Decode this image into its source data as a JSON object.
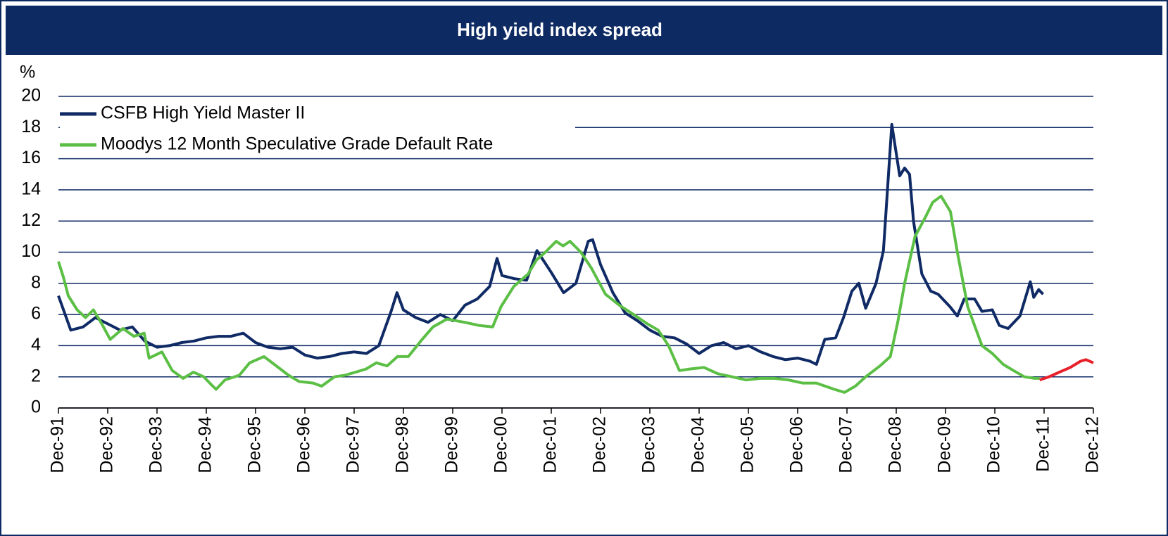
{
  "chart_data": {
    "type": "line",
    "title": "High yield index spread",
    "y_label": "%",
    "xlim": [
      1991.92,
      2012.92
    ],
    "xticks": [
      {
        "value": 1991.92,
        "label": "Dec-91"
      },
      {
        "value": 1992.92,
        "label": "Dec-92"
      },
      {
        "value": 1993.92,
        "label": "Dec-93"
      },
      {
        "value": 1994.92,
        "label": "Dec-94"
      },
      {
        "value": 1995.92,
        "label": "Dec-95"
      },
      {
        "value": 1996.92,
        "label": "Dec-96"
      },
      {
        "value": 1997.92,
        "label": "Dec-97"
      },
      {
        "value": 1998.92,
        "label": "Dec-98"
      },
      {
        "value": 1999.92,
        "label": "Dec-99"
      },
      {
        "value": 2000.92,
        "label": "Dec-00"
      },
      {
        "value": 2001.92,
        "label": "Dec-01"
      },
      {
        "value": 2002.92,
        "label": "Dec-02"
      },
      {
        "value": 2003.92,
        "label": "Dec-03"
      },
      {
        "value": 2004.92,
        "label": "Dec-04"
      },
      {
        "value": 2005.92,
        "label": "Dec-05"
      },
      {
        "value": 2006.92,
        "label": "Dec-06"
      },
      {
        "value": 2007.92,
        "label": "Dec-07"
      },
      {
        "value": 2008.92,
        "label": "Dec-08"
      },
      {
        "value": 2009.92,
        "label": "Dec-09"
      },
      {
        "value": 2010.92,
        "label": "Dec-10"
      },
      {
        "value": 2011.92,
        "label": "Dec-11"
      },
      {
        "value": 2012.92,
        "label": "Dec-12"
      }
    ],
    "ylim": [
      0,
      20
    ],
    "yticks": [
      0,
      2,
      4,
      6,
      8,
      10,
      12,
      14,
      16,
      18,
      20
    ],
    "grid": true,
    "legend": "upper left",
    "series": [
      {
        "name": "CSFB High Yield Master II",
        "color": "#0f2a65",
        "x": [
          1991.92,
          1992.17,
          1992.42,
          1992.67,
          1992.92,
          1993.17,
          1993.42,
          1993.67,
          1993.92,
          1994.17,
          1994.42,
          1994.67,
          1994.92,
          1995.17,
          1995.42,
          1995.67,
          1995.92,
          1996.17,
          1996.42,
          1996.67,
          1996.92,
          1997.17,
          1997.42,
          1997.67,
          1997.92,
          1998.17,
          1998.42,
          1998.67,
          1998.79,
          1998.92,
          1999.17,
          1999.42,
          1999.67,
          1999.92,
          2000.17,
          2000.42,
          2000.67,
          2000.82,
          2000.92,
          2001.17,
          2001.42,
          2001.63,
          2001.92,
          2002.17,
          2002.42,
          2002.67,
          2002.76,
          2002.92,
          2003.17,
          2003.42,
          2003.67,
          2003.92,
          2004.17,
          2004.42,
          2004.67,
          2004.92,
          2005.17,
          2005.42,
          2005.67,
          2005.92,
          2006.17,
          2006.42,
          2006.67,
          2006.92,
          2007.17,
          2007.3,
          2007.47,
          2007.69,
          2007.85,
          2008.02,
          2008.16,
          2008.3,
          2008.51,
          2008.66,
          2008.83,
          2008.99,
          2009.09,
          2009.19,
          2009.27,
          2009.44,
          2009.62,
          2009.77,
          2010.01,
          2010.16,
          2010.3,
          2010.51,
          2010.66,
          2010.87,
          2011.01,
          2011.19,
          2011.43,
          2011.64,
          2011.71,
          2011.81,
          2011.9
        ],
        "values": [
          7.2,
          5.0,
          5.2,
          5.8,
          5.4,
          5.0,
          5.2,
          4.3,
          3.9,
          4.0,
          4.2,
          4.3,
          4.5,
          4.6,
          4.6,
          4.8,
          4.2,
          3.9,
          3.8,
          3.9,
          3.4,
          3.2,
          3.3,
          3.5,
          3.6,
          3.5,
          4.0,
          6.2,
          7.4,
          6.3,
          5.8,
          5.5,
          6.0,
          5.6,
          6.6,
          7.0,
          7.8,
          9.6,
          8.5,
          8.3,
          8.2,
          10.1,
          8.7,
          7.4,
          8.0,
          10.7,
          10.8,
          9.2,
          7.4,
          6.1,
          5.6,
          5.0,
          4.6,
          4.5,
          4.1,
          3.5,
          4.0,
          4.2,
          3.8,
          4.0,
          3.6,
          3.3,
          3.1,
          3.2,
          3.0,
          2.8,
          4.4,
          4.5,
          5.8,
          7.5,
          8.0,
          6.4,
          8.0,
          10.1,
          18.2,
          14.9,
          15.4,
          15.0,
          12.0,
          8.6,
          7.5,
          7.3,
          6.5,
          5.9,
          7.0,
          7.0,
          6.2,
          6.3,
          5.3,
          5.1,
          5.9,
          8.1,
          7.1,
          7.6,
          7.3
        ]
      },
      {
        "name": "Moodys 12 Month Speculative Grade Default Rate",
        "color": "#5cbf45",
        "x": [
          1991.92,
          1992.02,
          1992.12,
          1992.3,
          1992.47,
          1992.63,
          1992.8,
          1992.97,
          1993.23,
          1993.45,
          1993.66,
          1993.76,
          1994.02,
          1994.23,
          1994.45,
          1994.66,
          1994.87,
          1995.02,
          1995.12,
          1995.3,
          1995.59,
          1995.8,
          1996.09,
          1996.3,
          1996.59,
          1996.8,
          1997.09,
          1997.26,
          1997.52,
          1997.73,
          1997.95,
          1998.16,
          1998.37,
          1998.59,
          1998.8,
          1999.02,
          1999.3,
          1999.52,
          1999.8,
          2000.16,
          2000.45,
          2000.73,
          2000.9,
          2001.16,
          2001.45,
          2001.62,
          2001.8,
          2002.02,
          2002.16,
          2002.3,
          2002.52,
          2002.73,
          2003.02,
          2003.3,
          2003.59,
          2003.87,
          2004.09,
          2004.3,
          2004.52,
          2004.73,
          2005.02,
          2005.3,
          2005.59,
          2005.87,
          2006.16,
          2006.45,
          2006.73,
          2007.02,
          2007.3,
          2007.66,
          2007.87,
          2008.09,
          2008.3,
          2008.59,
          2008.8,
          2008.95,
          2009.09,
          2009.3,
          2009.52,
          2009.66,
          2009.83,
          2010.02,
          2010.16,
          2010.37,
          2010.52,
          2010.66,
          2010.87,
          2011.09,
          2011.3,
          2011.52,
          2011.73,
          2011.83
        ],
        "values": [
          9.4,
          8.4,
          7.2,
          6.3,
          5.8,
          6.3,
          5.4,
          4.4,
          5.1,
          4.6,
          4.8,
          3.2,
          3.6,
          2.4,
          1.9,
          2.3,
          2.0,
          1.5,
          1.2,
          1.8,
          2.1,
          2.9,
          3.3,
          2.8,
          2.1,
          1.7,
          1.6,
          1.4,
          2.0,
          2.1,
          2.3,
          2.5,
          2.9,
          2.7,
          3.3,
          3.3,
          4.4,
          5.2,
          5.7,
          5.5,
          5.3,
          5.2,
          6.5,
          7.8,
          8.6,
          9.5,
          10.0,
          10.7,
          10.4,
          10.7,
          10.0,
          9.0,
          7.3,
          6.6,
          6.0,
          5.4,
          5.0,
          4.0,
          2.4,
          2.5,
          2.6,
          2.2,
          2.0,
          1.8,
          1.9,
          1.9,
          1.8,
          1.6,
          1.6,
          1.2,
          1.0,
          1.4,
          2.0,
          2.7,
          3.3,
          5.5,
          8.0,
          11.0,
          12.3,
          13.2,
          13.6,
          12.6,
          10.0,
          6.5,
          5.2,
          4.0,
          3.5,
          2.8,
          2.4,
          2.0,
          1.9,
          1.9
        ]
      },
      {
        "color": "#e8202a",
        "x": [
          2011.83,
          2012.02,
          2012.23,
          2012.45,
          2012.66,
          2012.77,
          2012.92
        ],
        "values": [
          1.8,
          2.0,
          2.3,
          2.6,
          3.0,
          3.1,
          2.9
        ]
      }
    ]
  }
}
